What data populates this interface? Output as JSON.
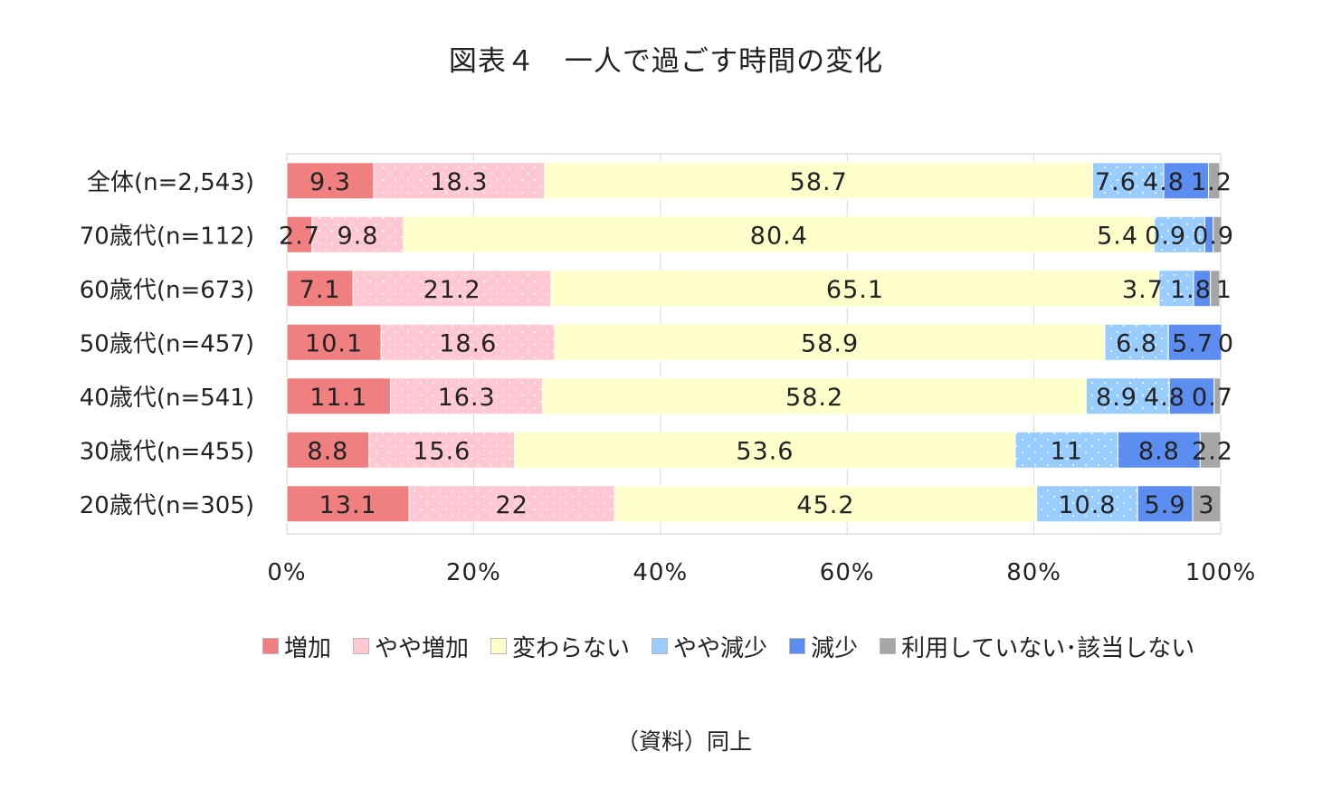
{
  "chart_data": {
    "type": "bar",
    "orientation": "horizontal",
    "stacked": true,
    "title": "図表４　一人で過ごす時間の変化",
    "categories": [
      "全体(n=2,543)",
      "70歳代(n=112)",
      "60歳代(n=673)",
      "50歳代(n=457)",
      "40歳代(n=541)",
      "30歳代(n=455)",
      "20歳代(n=305)"
    ],
    "series": [
      {
        "name": "増加",
        "color": "#f08080",
        "values": [
          9.3,
          2.7,
          7.1,
          10.1,
          11.1,
          8.8,
          13.1
        ]
      },
      {
        "name": "やや増加",
        "color": "#ffc8d2",
        "values": [
          18.3,
          9.8,
          21.2,
          18.6,
          16.3,
          15.6,
          22
        ]
      },
      {
        "name": "変わらない",
        "color": "#ffffcc",
        "values": [
          58.7,
          80.4,
          65.1,
          58.9,
          58.2,
          53.6,
          45.2
        ]
      },
      {
        "name": "やや減少",
        "color": "#99ccff",
        "values": [
          7.6,
          5.4,
          3.7,
          6.8,
          8.9,
          11,
          10.8
        ]
      },
      {
        "name": "減少",
        "color": "#5b8ef0",
        "values": [
          4.8,
          0.9,
          1.8,
          5.7,
          4.8,
          8.8,
          5.9
        ]
      },
      {
        "name": "利用していない･該当しない",
        "color": "#a6a6a6",
        "values": [
          1.2,
          0.9,
          1,
          0,
          0.7,
          2.2,
          3
        ]
      }
    ],
    "data_labels": [
      [
        "9.3",
        "18.3",
        "58.7",
        "7.6",
        "4.8",
        "1.2"
      ],
      [
        "2.7",
        "9.8",
        "80.4",
        "5.4",
        "0.9",
        "0.9"
      ],
      [
        "7.1",
        "21.2",
        "65.1",
        "3.7",
        "1.8",
        "1"
      ],
      [
        "10.1",
        "18.6",
        "58.9",
        "6.8",
        "5.7",
        "0"
      ],
      [
        "11.1",
        "16.3",
        "58.2",
        "8.9",
        "4.8",
        "0.7"
      ],
      [
        "8.8",
        "15.6",
        "53.6",
        "11",
        "8.8",
        "2.2"
      ],
      [
        "13.1",
        "22",
        "45.2",
        "10.8",
        "5.9",
        "3"
      ]
    ],
    "xlim": [
      0,
      100
    ],
    "x_ticks": [
      "0%",
      "20%",
      "40%",
      "60%",
      "80%",
      "100%"
    ],
    "grid": true,
    "legend_position": "bottom"
  },
  "source_note": "（資料）同上"
}
